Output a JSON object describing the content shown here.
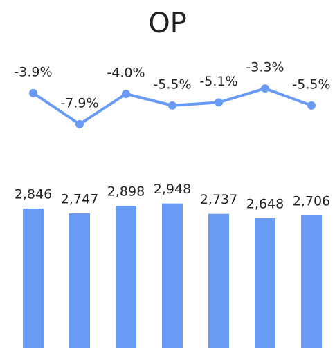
{
  "chart_data": {
    "type": "combo",
    "title": "OP",
    "categories": [
      null,
      null,
      null,
      null,
      null,
      null,
      null
    ],
    "ylim": [
      0,
      3000
    ],
    "y2lim": [
      -8,
      0
    ],
    "series": [
      {
        "type": "line",
        "axis": "y2",
        "color": "#6a9bf4",
        "values": [
          -3.9,
          -7.9,
          -4.0,
          -5.5,
          -5.1,
          -3.3,
          -5.5
        ],
        "value_labels": [
          "-3.9%",
          "-7.9%",
          "-4.0%",
          "-5.5%",
          "-5.1%",
          "-3.3%",
          "-5.5%"
        ]
      },
      {
        "type": "bar",
        "color": "#6a9bf4",
        "values": [
          2846,
          2747,
          2898,
          2948,
          2737,
          2648,
          2706
        ],
        "value_labels": [
          "2,846",
          "2,747",
          "2,898",
          "2,948",
          "2,737",
          "2,648",
          "2,706"
        ]
      }
    ]
  }
}
